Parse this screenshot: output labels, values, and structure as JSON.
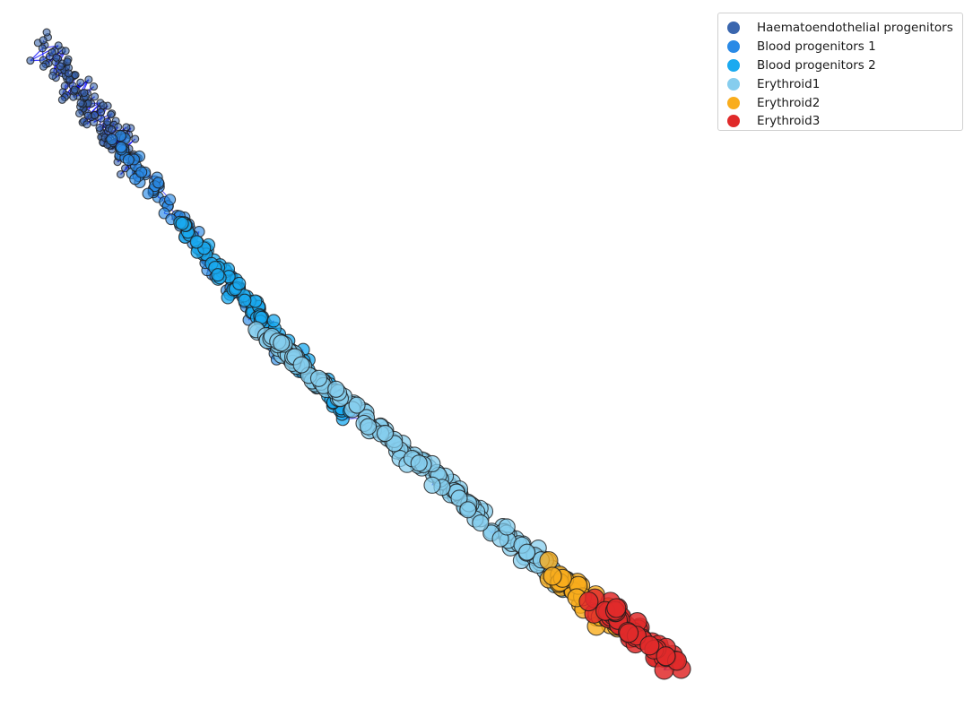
{
  "chart_data": {
    "type": "scatter",
    "title": "",
    "xlabel": "",
    "ylabel": "",
    "axes_visible": false,
    "grid": false,
    "legend_position": "top-right",
    "x_range": [
      0,
      100
    ],
    "y_range": [
      0,
      100
    ],
    "graph_edges": {
      "present": true,
      "color": "#0000ff",
      "description_visible": false
    },
    "marker_edge_color": "#1a1a1a",
    "series": [
      {
        "name": "Haematoendothelial progenitors",
        "color": "#3a66ae",
        "x_range": [
          0,
          15
        ],
        "y_range": [
          80,
          100
        ],
        "approx_points": 150
      },
      {
        "name": "Blood progenitors 1",
        "color": "#2a8ae6",
        "x_range": [
          12,
          40
        ],
        "y_range": [
          48,
          84
        ],
        "approx_points": 120
      },
      {
        "name": "Blood progenitors 2",
        "color": "#1aaaf0",
        "x_range": [
          22,
          48
        ],
        "y_range": [
          40,
          71
        ],
        "approx_points": 130
      },
      {
        "name": "Erythroid1",
        "color": "#86cdee",
        "x_range": [
          35,
          84
        ],
        "y_range": [
          12,
          53
        ],
        "approx_points": 190
      },
      {
        "name": "Erythroid2",
        "color": "#f9ad1d",
        "x_range": [
          80,
          91
        ],
        "y_range": [
          6,
          15
        ],
        "approx_points": 40
      },
      {
        "name": "Erythroid3",
        "color": "#e02a2a",
        "x_range": [
          88,
          100
        ],
        "y_range": [
          0,
          10
        ],
        "approx_points": 60
      }
    ]
  }
}
